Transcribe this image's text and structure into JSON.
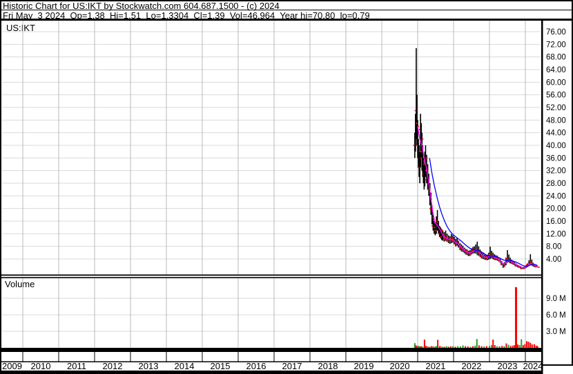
{
  "header": {
    "line1": "Historic Chart for US:IKT by Stockwatch.com 604.687.1500 - (c) 2024",
    "line2": "Fri May  3 2024  Op=1.38  Hi=1.51  Lo=1.3304  Cl=1.39  Vol=46,964  Year hi=70.80  lo=0.79"
  },
  "panel_labels": {
    "symbol": "US:IKT",
    "volume": "Volume"
  },
  "colors": {
    "background": "#ffffff",
    "frame": "#000000",
    "grid_horizontal": "#d9d9d9",
    "grid_vertical": "#b8b8b8",
    "price_bar": "#000000",
    "close_tick": "#ff0000",
    "ma_short": "#ff00ff",
    "ma_long": "#0000ff",
    "volume_up": "#21a121",
    "volume_down": "#ff0000",
    "axis_text": "#000000"
  },
  "chart_data": {
    "type": "ohlc-with-volume",
    "title": "Historic Chart for US:IKT",
    "symbol": "US:IKT",
    "last_trade": {
      "date": "Fri May 3 2024",
      "open": 1.38,
      "high": 1.51,
      "low": 1.3304,
      "close": 1.39,
      "volume": 46964,
      "year_high": 70.8,
      "year_low": 0.79
    },
    "x_axis": {
      "tick_labels": [
        "2009",
        "2010",
        "2011",
        "2012",
        "2013",
        "2014",
        "2015",
        "2016",
        "2017",
        "2018",
        "2019",
        "2020",
        "2021",
        "2022",
        "2023",
        "2024"
      ],
      "range": [
        2009,
        2024.45
      ]
    },
    "price_axis": {
      "range": [
        0,
        79.5
      ],
      "ticks": [
        76,
        72,
        68,
        64,
        60,
        56,
        52,
        48,
        44,
        40,
        36,
        32,
        28,
        24,
        20,
        16,
        12,
        8,
        4
      ],
      "tick_decimals": 2
    },
    "volume_axis": {
      "range_millions": [
        0,
        12.5
      ],
      "ticks_millions": [
        9,
        6,
        3
      ],
      "tick_labels": [
        "9.0 M",
        "6.0 M",
        "3.0 M"
      ]
    },
    "price_bars": [
      [
        2020.92,
        36,
        44,
        40
      ],
      [
        2020.94,
        38,
        50,
        47
      ],
      [
        2020.96,
        42,
        70.8,
        51
      ],
      [
        2020.98,
        40,
        56,
        46
      ],
      [
        2021.0,
        36,
        48,
        40
      ],
      [
        2021.02,
        33,
        42,
        38
      ],
      [
        2021.04,
        30,
        40,
        33
      ],
      [
        2021.06,
        28,
        38,
        36
      ],
      [
        2021.08,
        33,
        50,
        45
      ],
      [
        2021.1,
        36,
        47,
        42
      ],
      [
        2021.12,
        32,
        44,
        38
      ],
      [
        2021.14,
        30,
        40,
        34
      ],
      [
        2021.16,
        28,
        36,
        31
      ],
      [
        2021.18,
        26,
        34,
        29
      ],
      [
        2021.2,
        27,
        38,
        35
      ],
      [
        2021.22,
        30,
        40,
        36
      ],
      [
        2021.25,
        28,
        37,
        32
      ],
      [
        2021.28,
        26,
        34,
        28
      ],
      [
        2021.31,
        24,
        31,
        26
      ],
      [
        2021.34,
        21,
        28,
        23
      ],
      [
        2021.37,
        18,
        25,
        20
      ],
      [
        2021.4,
        15,
        21,
        17
      ],
      [
        2021.43,
        13,
        18,
        14.5
      ],
      [
        2021.46,
        12,
        16,
        13
      ],
      [
        2021.49,
        11.5,
        15.5,
        14
      ],
      [
        2021.52,
        12,
        17.5,
        15.5
      ],
      [
        2021.55,
        13,
        19.5,
        16
      ],
      [
        2021.58,
        12,
        16,
        13.5
      ],
      [
        2021.61,
        11,
        14.5,
        12
      ],
      [
        2021.64,
        10.5,
        14,
        13
      ],
      [
        2021.67,
        10,
        13.5,
        11
      ],
      [
        2021.7,
        9.8,
        13,
        10.5
      ],
      [
        2021.74,
        9.5,
        12.5,
        11.5
      ],
      [
        2021.78,
        9.7,
        13,
        11
      ],
      [
        2021.82,
        9.4,
        12,
        10
      ],
      [
        2021.86,
        9,
        11.5,
        10.5
      ],
      [
        2021.9,
        8.8,
        11.2,
        9.6
      ],
      [
        2021.94,
        9,
        11.9,
        10.4
      ],
      [
        2021.98,
        9.2,
        11.5,
        9.8
      ],
      [
        2022.02,
        8.6,
        11,
        9.2
      ],
      [
        2022.06,
        8,
        10.4,
        8.8
      ],
      [
        2022.1,
        8.2,
        10.8,
        9.5
      ],
      [
        2022.14,
        7.6,
        9.8,
        8.2
      ],
      [
        2022.18,
        6.8,
        9,
        7.4
      ],
      [
        2022.22,
        6.4,
        8.6,
        7.8
      ],
      [
        2022.26,
        6.2,
        8.2,
        7
      ],
      [
        2022.3,
        5.8,
        7.6,
        6.4
      ],
      [
        2022.34,
        5.4,
        7.2,
        6.6
      ],
      [
        2022.38,
        5.2,
        7,
        5.8
      ],
      [
        2022.42,
        4.9,
        6.6,
        5.5
      ],
      [
        2022.46,
        5,
        6.8,
        6
      ],
      [
        2022.5,
        5.4,
        7.4,
        6.4
      ],
      [
        2022.54,
        5.7,
        7.8,
        6.8
      ],
      [
        2022.58,
        5.8,
        8,
        7
      ],
      [
        2022.62,
        5.7,
        8.6,
        6.6
      ],
      [
        2022.66,
        5.2,
        9.5,
        6.2
      ],
      [
        2022.7,
        5,
        8,
        5.8
      ],
      [
        2022.74,
        4.6,
        7,
        5.2
      ],
      [
        2022.78,
        4.2,
        6.4,
        4.8
      ],
      [
        2022.82,
        4,
        5.8,
        4.5
      ],
      [
        2022.86,
        3.8,
        5.4,
        4.4
      ],
      [
        2022.9,
        3.7,
        5.2,
        4.2
      ],
      [
        2022.94,
        3.6,
        5.4,
        4.6
      ],
      [
        2022.98,
        3.8,
        6,
        5
      ],
      [
        2023.02,
        4,
        7.9,
        5.5
      ],
      [
        2023.06,
        4.2,
        6.6,
        5
      ],
      [
        2023.1,
        3.9,
        6,
        4.6
      ],
      [
        2023.14,
        3.7,
        5.5,
        4.3
      ],
      [
        2023.18,
        3.6,
        5.2,
        4.2
      ],
      [
        2023.22,
        3.5,
        5,
        4
      ],
      [
        2023.26,
        3.2,
        4.6,
        3.6
      ],
      [
        2023.3,
        2.8,
        4,
        3.2
      ],
      [
        2023.34,
        2,
        3.2,
        2.4
      ],
      [
        2023.38,
        1.2,
        2.4,
        1.8
      ],
      [
        2023.42,
        1.5,
        3,
        2.4
      ],
      [
        2023.46,
        2,
        4.4,
        3.4
      ],
      [
        2023.5,
        2.8,
        6.8,
        4
      ],
      [
        2023.54,
        3,
        5.4,
        3.6
      ],
      [
        2023.58,
        2.6,
        4.4,
        3
      ],
      [
        2023.62,
        2.4,
        3.8,
        2.8
      ],
      [
        2023.66,
        2.2,
        3.4,
        2.6
      ],
      [
        2023.7,
        2,
        3,
        2.3
      ],
      [
        2023.74,
        1.6,
        2.6,
        1.9
      ],
      [
        2023.78,
        1.4,
        2.2,
        1.7
      ],
      [
        2023.82,
        1.2,
        2,
        1.5
      ],
      [
        2023.86,
        1,
        1.8,
        1.3
      ],
      [
        2023.9,
        0.79,
        1.5,
        1.0
      ],
      [
        2023.94,
        0.8,
        1.4,
        1.1
      ],
      [
        2023.98,
        0.9,
        1.6,
        1.3
      ],
      [
        2024.02,
        1.1,
        2,
        1.7
      ],
      [
        2024.06,
        1.4,
        2.6,
        2.1
      ],
      [
        2024.1,
        1.7,
        3.6,
        2.8
      ],
      [
        2024.14,
        2.2,
        5.5,
        3.3
      ],
      [
        2024.18,
        1.9,
        3.8,
        2.5
      ],
      [
        2024.22,
        1.6,
        2.8,
        2
      ],
      [
        2024.26,
        1.4,
        2.3,
        1.7
      ],
      [
        2024.3,
        1.35,
        2,
        1.55
      ],
      [
        2024.34,
        1.33,
        1.51,
        1.39
      ]
    ],
    "ma_short": [
      [
        2021.0,
        46
      ],
      [
        2021.06,
        42
      ],
      [
        2021.12,
        40
      ],
      [
        2021.18,
        36
      ],
      [
        2021.24,
        33
      ],
      [
        2021.3,
        29
      ],
      [
        2021.36,
        24
      ],
      [
        2021.42,
        19
      ],
      [
        2021.48,
        15.5
      ],
      [
        2021.54,
        14.8
      ],
      [
        2021.6,
        13.8
      ],
      [
        2021.66,
        12.4
      ],
      [
        2021.72,
        11.2
      ],
      [
        2021.8,
        10.6
      ],
      [
        2021.88,
        10.2
      ],
      [
        2021.96,
        10.2
      ],
      [
        2022.04,
        9.4
      ],
      [
        2022.12,
        9.0
      ],
      [
        2022.2,
        8.0
      ],
      [
        2022.28,
        7.0
      ],
      [
        2022.36,
        6.3
      ],
      [
        2022.44,
        5.8
      ],
      [
        2022.52,
        6.2
      ],
      [
        2022.6,
        6.8
      ],
      [
        2022.68,
        6.6
      ],
      [
        2022.76,
        5.6
      ],
      [
        2022.84,
        4.8
      ],
      [
        2022.92,
        4.4
      ],
      [
        2023.0,
        4.8
      ],
      [
        2023.08,
        5.0
      ],
      [
        2023.16,
        4.5
      ],
      [
        2023.24,
        4.0
      ],
      [
        2023.32,
        3.2
      ],
      [
        2023.4,
        2.4
      ],
      [
        2023.48,
        3.0
      ],
      [
        2023.56,
        3.6
      ],
      [
        2023.64,
        3.0
      ],
      [
        2023.72,
        2.4
      ],
      [
        2023.8,
        1.9
      ],
      [
        2023.88,
        1.4
      ],
      [
        2023.96,
        1.2
      ],
      [
        2024.04,
        1.6
      ],
      [
        2024.12,
        2.5
      ],
      [
        2024.2,
        2.6
      ],
      [
        2024.28,
        1.9
      ],
      [
        2024.34,
        1.6
      ]
    ],
    "ma_long": [
      [
        2021.33,
        36
      ],
      [
        2021.4,
        31
      ],
      [
        2021.47,
        27
      ],
      [
        2021.54,
        23.5
      ],
      [
        2021.61,
        20.5
      ],
      [
        2021.68,
        18
      ],
      [
        2021.75,
        16
      ],
      [
        2021.82,
        14.3
      ],
      [
        2021.89,
        13
      ],
      [
        2021.96,
        12
      ],
      [
        2022.04,
        11.2
      ],
      [
        2022.12,
        10.5
      ],
      [
        2022.2,
        9.8
      ],
      [
        2022.28,
        9.0
      ],
      [
        2022.36,
        8.2
      ],
      [
        2022.44,
        7.5
      ],
      [
        2022.52,
        7.0
      ],
      [
        2022.6,
        6.8
      ],
      [
        2022.68,
        6.7
      ],
      [
        2022.76,
        6.3
      ],
      [
        2022.84,
        5.8
      ],
      [
        2022.92,
        5.2
      ],
      [
        2023.0,
        4.9
      ],
      [
        2023.08,
        4.9
      ],
      [
        2023.16,
        4.8
      ],
      [
        2023.24,
        4.5
      ],
      [
        2023.32,
        4.1
      ],
      [
        2023.4,
        3.6
      ],
      [
        2023.48,
        3.4
      ],
      [
        2023.56,
        3.5
      ],
      [
        2023.64,
        3.4
      ],
      [
        2023.72,
        3.1
      ],
      [
        2023.8,
        2.7
      ],
      [
        2023.88,
        2.2
      ],
      [
        2023.96,
        1.8
      ],
      [
        2024.04,
        1.7
      ],
      [
        2024.12,
        2.0
      ],
      [
        2024.2,
        2.4
      ],
      [
        2024.28,
        2.2
      ],
      [
        2024.34,
        1.9
      ]
    ],
    "volume_bars": [
      [
        2020.92,
        0.85,
        "up"
      ],
      [
        2020.95,
        0.45,
        "down"
      ],
      [
        2020.98,
        0.3,
        "down"
      ],
      [
        2021.02,
        0.35,
        "up"
      ],
      [
        2021.06,
        0.25,
        "down"
      ],
      [
        2021.1,
        0.3,
        "down"
      ],
      [
        2021.14,
        0.2,
        "up"
      ],
      [
        2021.19,
        1.5,
        "down"
      ],
      [
        2021.23,
        0.35,
        "down"
      ],
      [
        2021.28,
        0.25,
        "down"
      ],
      [
        2021.33,
        0.2,
        "up"
      ],
      [
        2021.38,
        0.3,
        "down"
      ],
      [
        2021.43,
        0.25,
        "down"
      ],
      [
        2021.48,
        0.2,
        "up"
      ],
      [
        2021.52,
        0.3,
        "up"
      ],
      [
        2021.56,
        1.45,
        "down"
      ],
      [
        2021.62,
        0.35,
        "down"
      ],
      [
        2021.68,
        0.25,
        "up"
      ],
      [
        2021.74,
        0.2,
        "down"
      ],
      [
        2021.8,
        0.3,
        "up"
      ],
      [
        2021.86,
        0.2,
        "down"
      ],
      [
        2021.92,
        0.25,
        "down"
      ],
      [
        2021.98,
        0.3,
        "up"
      ],
      [
        2022.05,
        0.2,
        "down"
      ],
      [
        2022.12,
        0.3,
        "up"
      ],
      [
        2022.19,
        0.25,
        "up"
      ],
      [
        2022.26,
        0.45,
        "up"
      ],
      [
        2022.33,
        0.3,
        "down"
      ],
      [
        2022.4,
        0.25,
        "down"
      ],
      [
        2022.47,
        0.2,
        "up"
      ],
      [
        2022.54,
        0.3,
        "down"
      ],
      [
        2022.6,
        0.4,
        "up"
      ],
      [
        2022.65,
        1.6,
        "up"
      ],
      [
        2022.71,
        0.45,
        "down"
      ],
      [
        2022.78,
        0.3,
        "down"
      ],
      [
        2022.85,
        0.25,
        "up"
      ],
      [
        2022.92,
        0.3,
        "down"
      ],
      [
        2023.0,
        0.35,
        "up"
      ],
      [
        2023.06,
        0.5,
        "up"
      ],
      [
        2023.1,
        1.5,
        "down"
      ],
      [
        2023.15,
        0.5,
        "down"
      ],
      [
        2023.21,
        0.3,
        "up"
      ],
      [
        2023.28,
        0.25,
        "down"
      ],
      [
        2023.35,
        0.35,
        "down"
      ],
      [
        2023.41,
        0.3,
        "up"
      ],
      [
        2023.47,
        0.8,
        "down"
      ],
      [
        2023.53,
        0.55,
        "up"
      ],
      [
        2023.59,
        0.35,
        "down"
      ],
      [
        2023.65,
        0.4,
        "down"
      ],
      [
        2023.7,
        0.5,
        "down"
      ],
      [
        2023.74,
        11.0,
        "down"
      ],
      [
        2023.79,
        0.6,
        "down"
      ],
      [
        2023.84,
        0.5,
        "up"
      ],
      [
        2023.89,
        1.55,
        "up"
      ],
      [
        2023.94,
        0.5,
        "down"
      ],
      [
        2023.99,
        0.7,
        "down"
      ],
      [
        2024.04,
        1.2,
        "down"
      ],
      [
        2024.09,
        1.1,
        "down"
      ],
      [
        2024.14,
        0.9,
        "down"
      ],
      [
        2024.19,
        0.6,
        "down"
      ],
      [
        2024.25,
        0.65,
        "down"
      ],
      [
        2024.3,
        0.4,
        "down"
      ],
      [
        2024.34,
        0.3,
        "down"
      ]
    ]
  }
}
